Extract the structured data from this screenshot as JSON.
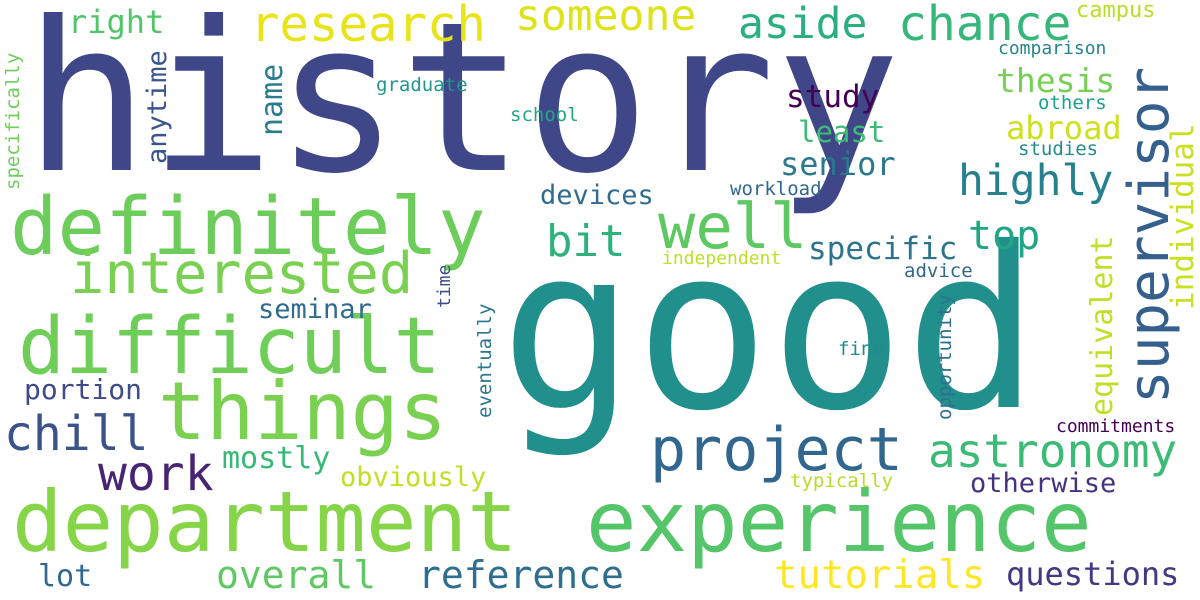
{
  "words": [
    {
      "text": "history",
      "color": "#3f4788"
    },
    {
      "text": "good",
      "color": "#21908d"
    },
    {
      "text": "experience",
      "color": "#54c568"
    },
    {
      "text": "department",
      "color": "#86d549"
    },
    {
      "text": "definitely",
      "color": "#6ccd5a"
    },
    {
      "text": "things",
      "color": "#7ad151"
    },
    {
      "text": "difficult",
      "color": "#6ece58"
    },
    {
      "text": "interested",
      "color": "#7ad151"
    },
    {
      "text": "supervisor",
      "color": "#355f8d"
    },
    {
      "text": "project",
      "color": "#31678e"
    },
    {
      "text": "research",
      "color": "#e8e419"
    },
    {
      "text": "well",
      "color": "#5ec962"
    },
    {
      "text": "someone",
      "color": "#dde318"
    },
    {
      "text": "chance",
      "color": "#35b779"
    },
    {
      "text": "aside",
      "color": "#2ab07f"
    },
    {
      "text": "astronomy",
      "color": "#3bbb75"
    },
    {
      "text": "work",
      "color": "#482475"
    },
    {
      "text": "chill",
      "color": "#3b528b"
    },
    {
      "text": "highly",
      "color": "#27808e"
    },
    {
      "text": "bit",
      "color": "#2db27d"
    },
    {
      "text": "reference",
      "color": "#2e6e8e"
    },
    {
      "text": "overall",
      "color": "#5ec962"
    },
    {
      "text": "tutorials",
      "color": "#fde725"
    },
    {
      "text": "questions",
      "color": "#453781"
    },
    {
      "text": "top",
      "color": "#21a685"
    },
    {
      "text": "thesis",
      "color": "#75d054"
    },
    {
      "text": "individual",
      "color": "#cae11f"
    },
    {
      "text": "equivalent",
      "color": "#c0df25"
    },
    {
      "text": "abroad",
      "color": "#cde11d"
    },
    {
      "text": "right",
      "color": "#52c569"
    },
    {
      "text": "mostly",
      "color": "#37b878"
    },
    {
      "text": "senior",
      "color": "#2a778e"
    },
    {
      "text": "specific",
      "color": "#2c738e"
    },
    {
      "text": "study",
      "color": "#440154"
    },
    {
      "text": "portion",
      "color": "#3e4a89"
    },
    {
      "text": "lot",
      "color": "#31688e"
    },
    {
      "text": "otherwise",
      "color": "#46327e"
    },
    {
      "text": "name",
      "color": "#297b8e"
    },
    {
      "text": "least",
      "color": "#3dbc74"
    },
    {
      "text": "devices",
      "color": "#2f6c8e"
    },
    {
      "text": "seminar",
      "color": "#2f6b8e"
    },
    {
      "text": "obviously",
      "color": "#c2df23"
    },
    {
      "text": "anytime",
      "color": "#3a548c"
    },
    {
      "text": "campus",
      "color": "#b8de29"
    },
    {
      "text": "commitments",
      "color": "#440154"
    },
    {
      "text": "comparison",
      "color": "#25848e"
    },
    {
      "text": "graduate",
      "color": "#1f968b"
    },
    {
      "text": "school",
      "color": "#22a884"
    },
    {
      "text": "workload",
      "color": "#31688e"
    },
    {
      "text": "others",
      "color": "#1fa187"
    },
    {
      "text": "studies",
      "color": "#238a8d"
    },
    {
      "text": "independent",
      "color": "#bddf26"
    },
    {
      "text": "advice",
      "color": "#31688e"
    },
    {
      "text": "fine",
      "color": "#23898e"
    },
    {
      "text": "typically",
      "color": "#b5de2b"
    },
    {
      "text": "specifically",
      "color": "#6ece58"
    },
    {
      "text": "time",
      "color": "#3e4c8a"
    },
    {
      "text": "eventually",
      "color": "#2a788e"
    },
    {
      "text": "opportunity",
      "color": "#2c718e"
    }
  ]
}
